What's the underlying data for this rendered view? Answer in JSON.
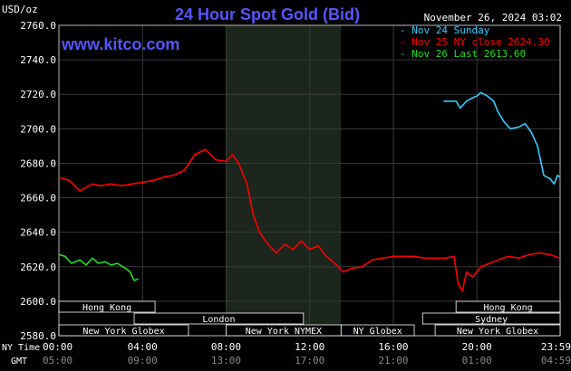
{
  "chart_data": {
    "type": "line",
    "title": "24 Hour Spot Gold (Bid)",
    "watermark": "www.kitco.com",
    "timestamp": "November 26, 2024 03:02",
    "ylabel": "USD/oz",
    "ylim": [
      2580,
      2760
    ],
    "y_ticks": [
      "2760.0",
      "2740.0",
      "2720.0",
      "2700.0",
      "2680.0",
      "2660.0",
      "2640.0",
      "2620.0",
      "2600.0",
      "2580.0"
    ],
    "x_axis_ny_label": "NY Time",
    "x_axis_gmt_label": "GMT",
    "x_ticks_ny": [
      "00:00",
      "04:00",
      "08:00",
      "12:00",
      "16:00",
      "20:00",
      "23:59"
    ],
    "x_ticks_gmt": [
      "05:00",
      "09:00",
      "13:00",
      "17:00",
      "21:00",
      "01:00",
      "04:59"
    ],
    "grid": true,
    "legend_position": "top-right",
    "colors": {
      "background": "#000000",
      "grid": "#3a3a3a",
      "axis_text": "#ffffff",
      "title": "#5555ff",
      "watermark": "#5555ff",
      "nymex_shade": "#1a2a1a",
      "session_bar": "#000000",
      "session_border": "#ffffff"
    },
    "series": [
      {
        "name": "Nov 24 Sunday",
        "color": "#33ccff",
        "points": [
          [
            18.4,
            2716
          ],
          [
            19.0,
            2716
          ],
          [
            19.2,
            2712
          ],
          [
            19.5,
            2716
          ],
          [
            19.8,
            2718
          ],
          [
            20.0,
            2719
          ],
          [
            20.2,
            2721
          ],
          [
            20.5,
            2719
          ],
          [
            20.8,
            2716
          ],
          [
            21.0,
            2710
          ],
          [
            21.3,
            2704
          ],
          [
            21.6,
            2700
          ],
          [
            22.0,
            2701
          ],
          [
            22.3,
            2703
          ],
          [
            22.6,
            2698
          ],
          [
            22.9,
            2690
          ],
          [
            23.2,
            2673
          ],
          [
            23.5,
            2671
          ],
          [
            23.7,
            2668
          ],
          [
            23.85,
            2673
          ],
          [
            23.98,
            2672
          ]
        ]
      },
      {
        "name": "Nov 25 NY close 2624.30",
        "color": "#ff0000",
        "points": [
          [
            0,
            2672
          ],
          [
            0.5,
            2670
          ],
          [
            1.0,
            2664
          ],
          [
            1.3,
            2666
          ],
          [
            1.6,
            2668
          ],
          [
            2.0,
            2667
          ],
          [
            2.5,
            2668
          ],
          [
            3.0,
            2667
          ],
          [
            3.5,
            2668
          ],
          [
            4.0,
            2669
          ],
          [
            4.5,
            2670
          ],
          [
            5.0,
            2672
          ],
          [
            5.5,
            2673
          ],
          [
            6.0,
            2676
          ],
          [
            6.5,
            2685
          ],
          [
            7.0,
            2688
          ],
          [
            7.5,
            2682
          ],
          [
            8.0,
            2681
          ],
          [
            8.3,
            2685
          ],
          [
            8.6,
            2680
          ],
          [
            9.0,
            2668
          ],
          [
            9.3,
            2650
          ],
          [
            9.6,
            2640
          ],
          [
            10.0,
            2633
          ],
          [
            10.4,
            2628
          ],
          [
            10.8,
            2633
          ],
          [
            11.2,
            2630
          ],
          [
            11.6,
            2635
          ],
          [
            12.0,
            2630
          ],
          [
            12.4,
            2632
          ],
          [
            12.8,
            2626
          ],
          [
            13.2,
            2622
          ],
          [
            13.6,
            2617
          ],
          [
            14.0,
            2619
          ],
          [
            14.5,
            2620
          ],
          [
            15.0,
            2624
          ],
          [
            15.5,
            2625
          ],
          [
            16.0,
            2626
          ],
          [
            16.5,
            2626
          ],
          [
            17.0,
            2626
          ],
          [
            17.5,
            2625
          ],
          [
            18.0,
            2625
          ],
          [
            18.5,
            2625
          ],
          [
            18.9,
            2626
          ],
          [
            19.1,
            2610
          ],
          [
            19.3,
            2606
          ],
          [
            19.5,
            2617
          ],
          [
            19.8,
            2614
          ],
          [
            20.2,
            2620
          ],
          [
            20.6,
            2622
          ],
          [
            21.0,
            2624
          ],
          [
            21.5,
            2626
          ],
          [
            22.0,
            2625
          ],
          [
            22.5,
            2627
          ],
          [
            23.0,
            2628
          ],
          [
            23.5,
            2627
          ],
          [
            23.98,
            2625
          ]
        ]
      },
      {
        "name": "Nov 26 Last 2613.60",
        "color": "#22dd22",
        "points": [
          [
            0,
            2627
          ],
          [
            0.3,
            2626
          ],
          [
            0.6,
            2622
          ],
          [
            1.0,
            2624
          ],
          [
            1.3,
            2621
          ],
          [
            1.6,
            2625
          ],
          [
            1.9,
            2622
          ],
          [
            2.2,
            2623
          ],
          [
            2.5,
            2621
          ],
          [
            2.8,
            2622
          ],
          [
            3.05,
            2620
          ],
          [
            3.2,
            2619
          ],
          [
            3.4,
            2617
          ],
          [
            3.6,
            2612
          ],
          [
            3.8,
            2613
          ]
        ]
      }
    ],
    "session_bars": [
      {
        "label": "Hong Kong",
        "start": 0,
        "end": 4.6,
        "row": 0
      },
      {
        "label": "London",
        "start": 3.6,
        "end": 11.7,
        "row": 1
      },
      {
        "label": "New York Globex",
        "start": 0,
        "end": 6.2,
        "row": 2
      },
      {
        "label": "New York NYMEX",
        "start": 8.0,
        "end": 13.5,
        "row": 2
      },
      {
        "label": "NY Globex",
        "start": 13.5,
        "end": 17.0,
        "row": 2
      },
      {
        "label": "Hong Kong",
        "start": 19.0,
        "end": 23.98,
        "row": 0
      },
      {
        "label": "Sydney",
        "start": 17.4,
        "end": 23.98,
        "row": 1
      },
      {
        "label": "New York Globex",
        "start": 18.0,
        "end": 23.98,
        "row": 2
      }
    ],
    "nymex_shade": [
      8.0,
      13.5
    ]
  }
}
